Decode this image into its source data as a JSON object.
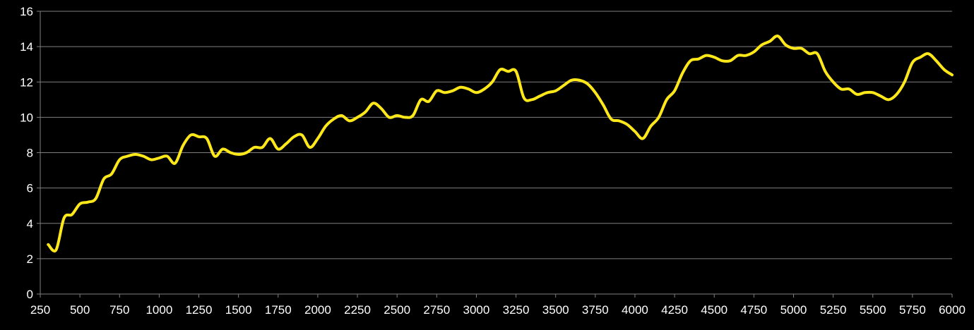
{
  "chart_data": {
    "type": "line",
    "title": "",
    "xlabel": "",
    "ylabel": "",
    "xlim": [
      250,
      6000
    ],
    "ylim": [
      0,
      16
    ],
    "x_ticks": [
      "250",
      "500",
      "750",
      "1000",
      "1250",
      "1500",
      "1750",
      "2000",
      "2250",
      "2500",
      "2750",
      "3000",
      "3250",
      "3500",
      "3750",
      "4000",
      "4250",
      "4500",
      "4750",
      "5000",
      "5250",
      "5500",
      "5750",
      "6000"
    ],
    "y_ticks": [
      "0",
      "2",
      "4",
      "6",
      "8",
      "10",
      "12",
      "14",
      "16"
    ],
    "grid": "horizontal",
    "legend": "none",
    "colors": {
      "background": "#000000",
      "line": "#FFE81A",
      "gridline": "#7F7F7F",
      "text": "#FFFFFF"
    },
    "series": [
      {
        "x": [
          300,
          350,
          400,
          450,
          500,
          550,
          600,
          650,
          700,
          750,
          800,
          850,
          900,
          950,
          1000,
          1050,
          1100,
          1150,
          1200,
          1250,
          1300,
          1350,
          1400,
          1450,
          1500,
          1550,
          1600,
          1650,
          1700,
          1750,
          1800,
          1850,
          1900,
          1950,
          2000,
          2050,
          2100,
          2150,
          2200,
          2250,
          2300,
          2350,
          2400,
          2450,
          2500,
          2550,
          2600,
          2650,
          2700,
          2750,
          2800,
          2850,
          2900,
          2950,
          3000,
          3050,
          3100,
          3150,
          3200,
          3250,
          3300,
          3350,
          3400,
          3450,
          3500,
          3550,
          3600,
          3650,
          3700,
          3750,
          3800,
          3850,
          3900,
          3950,
          4000,
          4050,
          4100,
          4150,
          4200,
          4250,
          4300,
          4350,
          4400,
          4450,
          4500,
          4550,
          4600,
          4650,
          4700,
          4750,
          4800,
          4850,
          4900,
          4950,
          5000,
          5050,
          5100,
          5150,
          5200,
          5250,
          5300,
          5350,
          5400,
          5450,
          5500,
          5550,
          5600,
          5650,
          5700,
          5750,
          5800,
          5850,
          5900,
          5950,
          6000
        ],
        "y": [
          2.8,
          2.5,
          4.3,
          4.5,
          5.1,
          5.2,
          5.4,
          6.5,
          6.8,
          7.6,
          7.8,
          7.9,
          7.8,
          7.6,
          7.7,
          7.8,
          7.4,
          8.4,
          9.0,
          8.9,
          8.8,
          7.8,
          8.2,
          8.0,
          7.9,
          8.0,
          8.3,
          8.3,
          8.8,
          8.2,
          8.5,
          8.9,
          9.0,
          8.3,
          8.8,
          9.5,
          9.9,
          10.1,
          9.8,
          10.0,
          10.3,
          10.8,
          10.5,
          10.0,
          10.1,
          10.0,
          10.1,
          11.0,
          10.9,
          11.5,
          11.4,
          11.5,
          11.7,
          11.6,
          11.4,
          11.6,
          12.0,
          12.7,
          12.6,
          12.6,
          11.1,
          11.0,
          11.2,
          11.4,
          11.5,
          11.8,
          12.1,
          12.1,
          11.9,
          11.4,
          10.7,
          9.9,
          9.8,
          9.6,
          9.2,
          8.8,
          9.5,
          10.0,
          11.0,
          11.5,
          12.5,
          13.2,
          13.3,
          13.5,
          13.4,
          13.2,
          13.2,
          13.5,
          13.5,
          13.7,
          14.1,
          14.3,
          14.6,
          14.1,
          13.9,
          13.9,
          13.6,
          13.6,
          12.6,
          12.0,
          11.6,
          11.6,
          11.3,
          11.4,
          11.4,
          11.2,
          11.0,
          11.3,
          12.0,
          13.1,
          13.4,
          13.6,
          13.2,
          12.7,
          12.4
        ]
      }
    ]
  }
}
